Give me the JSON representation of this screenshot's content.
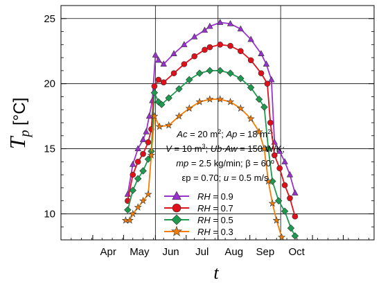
{
  "chart_data": {
    "type": "line",
    "xlabel": "t",
    "ylabel_main": "T",
    "ylabel_sub": "p",
    "ylabel_unit": "[°C]",
    "months": [
      "Apr",
      "May",
      "Jun",
      "Jul",
      "Aug",
      "Sep",
      "Oct"
    ],
    "x_range_days": [
      60,
      365
    ],
    "xlim": [
      "Mar 1",
      "Dec 31"
    ],
    "ylim": [
      8,
      26
    ],
    "y_ticks": [
      10,
      15,
      20,
      25
    ],
    "grid": true,
    "legend_position": "bottom-center",
    "annotation_lines": [
      [
        "Ac = 20 m²; Ap = 18 m²;"
      ],
      [
        "V = 10 m³; Ub·Aw = 150 W/K;"
      ],
      [
        "mp = 2.5 kg/min; β = 60º"
      ],
      [
        "εp = 0.70; u = 0.5 m/s"
      ]
    ],
    "series": [
      {
        "name": "RH = 0.9",
        "color": "#9932cc",
        "marker": "triangle",
        "points": [
          [
            125,
            11.5
          ],
          [
            130,
            13.8
          ],
          [
            135,
            15.0
          ],
          [
            140,
            15.7
          ],
          [
            143,
            16.3
          ],
          [
            146,
            17.5
          ],
          [
            149,
            18.7
          ],
          [
            152,
            22.2
          ],
          [
            155,
            21.8
          ],
          [
            160,
            21.5
          ],
          [
            170,
            22.3
          ],
          [
            180,
            23.0
          ],
          [
            190,
            23.6
          ],
          [
            200,
            24.1
          ],
          [
            205,
            24.4
          ],
          [
            215,
            24.7
          ],
          [
            225,
            24.6
          ],
          [
            235,
            24.2
          ],
          [
            245,
            23.4
          ],
          [
            255,
            22.3
          ],
          [
            260,
            21.5
          ],
          [
            265,
            20.3
          ],
          [
            268,
            15.5
          ],
          [
            273,
            14.8
          ],
          [
            278,
            14.0
          ],
          [
            283,
            13.0
          ],
          [
            288,
            11.6
          ]
        ]
      },
      {
        "name": "RH = 0.7",
        "color": "#e0101a",
        "marker": "circle",
        "points": [
          [
            125,
            11.0
          ],
          [
            130,
            13.0
          ],
          [
            135,
            14.0
          ],
          [
            140,
            14.6
          ],
          [
            145,
            15.5
          ],
          [
            148,
            16.5
          ],
          [
            151,
            19.8
          ],
          [
            155,
            20.3
          ],
          [
            160,
            20.1
          ],
          [
            170,
            20.8
          ],
          [
            180,
            21.5
          ],
          [
            190,
            22.1
          ],
          [
            200,
            22.6
          ],
          [
            205,
            22.8
          ],
          [
            215,
            23.0
          ],
          [
            225,
            22.9
          ],
          [
            235,
            22.5
          ],
          [
            245,
            21.8
          ],
          [
            255,
            20.8
          ],
          [
            261,
            20.0
          ],
          [
            264,
            17.0
          ],
          [
            268,
            14.5
          ],
          [
            273,
            13.5
          ],
          [
            278,
            12.2
          ],
          [
            283,
            11.2
          ],
          [
            288,
            9.8
          ]
        ]
      },
      {
        "name": "RH = 0.5",
        "color": "#1e9a50",
        "marker": "diamond",
        "points": [
          [
            125,
            10.3
          ],
          [
            130,
            11.8
          ],
          [
            135,
            12.7
          ],
          [
            140,
            13.3
          ],
          [
            145,
            14.2
          ],
          [
            148,
            14.8
          ],
          [
            151,
            19.3
          ],
          [
            155,
            18.6
          ],
          [
            158,
            18.4
          ],
          [
            165,
            18.9
          ],
          [
            175,
            19.6
          ],
          [
            185,
            20.3
          ],
          [
            195,
            20.8
          ],
          [
            205,
            21.0
          ],
          [
            215,
            21.0
          ],
          [
            225,
            20.8
          ],
          [
            235,
            20.4
          ],
          [
            245,
            19.7
          ],
          [
            253,
            18.8
          ],
          [
            258,
            18.2
          ],
          [
            262,
            15.0
          ],
          [
            266,
            12.5
          ],
          [
            272,
            11.0
          ],
          [
            278,
            10.2
          ],
          [
            284,
            8.9
          ],
          [
            288,
            8.3
          ]
        ]
      },
      {
        "name": "RH = 0.3",
        "color": "#f57c00",
        "marker": "star",
        "points": [
          [
            123,
            9.5
          ],
          [
            127,
            9.5
          ],
          [
            130,
            10.0
          ],
          [
            135,
            10.5
          ],
          [
            140,
            11.0
          ],
          [
            145,
            11.5
          ],
          [
            148,
            14.5
          ],
          [
            151,
            17.5
          ],
          [
            156,
            16.7
          ],
          [
            165,
            16.8
          ],
          [
            175,
            17.5
          ],
          [
            185,
            18.1
          ],
          [
            195,
            18.6
          ],
          [
            205,
            18.8
          ],
          [
            215,
            18.8
          ],
          [
            225,
            18.6
          ],
          [
            235,
            18.1
          ],
          [
            245,
            17.3
          ],
          [
            253,
            16.3
          ],
          [
            258,
            15.0
          ],
          [
            262,
            12.5
          ],
          [
            266,
            10.8
          ],
          [
            270,
            9.5
          ],
          [
            275,
            8.2
          ]
        ]
      }
    ]
  }
}
